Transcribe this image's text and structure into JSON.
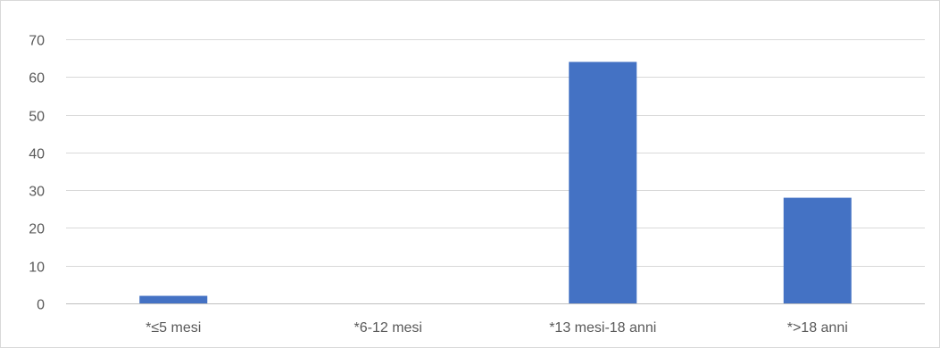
{
  "chart_data": {
    "type": "bar",
    "title": "",
    "xlabel": "",
    "ylabel": "",
    "categories": [
      "*≤5 mesi",
      "*6-12 mesi",
      "*13 mesi-18 anni",
      "*>18 anni"
    ],
    "values": [
      2,
      0,
      64,
      28
    ],
    "ylim": [
      0,
      70
    ],
    "yticks": [
      0,
      10,
      20,
      30,
      40,
      50,
      60,
      70
    ],
    "grid": true,
    "legend": "none",
    "bar_color": "#4472c4",
    "grid_color": "#d9d9d9",
    "axis_color": "#bfbfbf",
    "label_color": "#595959"
  }
}
